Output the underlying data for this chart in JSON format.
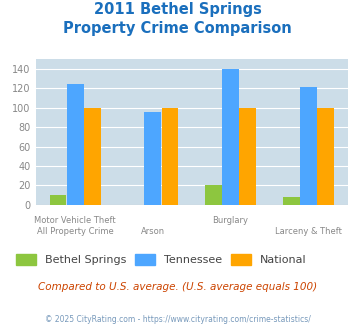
{
  "title_line1": "2011 Bethel Springs",
  "title_line2": "Property Crime Comparison",
  "bethel_springs": [
    10,
    0,
    20,
    8
  ],
  "tennessee": [
    125,
    96,
    140,
    121
  ],
  "national": [
    100,
    100,
    100,
    100
  ],
  "bethel_color": "#8dc63f",
  "tennessee_color": "#4da6ff",
  "national_color": "#ffa500",
  "bg_color": "#ccdde8",
  "ylim": [
    0,
    150
  ],
  "yticks": [
    0,
    20,
    40,
    60,
    80,
    100,
    120,
    140
  ],
  "legend_labels": [
    "Bethel Springs",
    "Tennessee",
    "National"
  ],
  "x_top_labels": [
    "Motor Vehicle Theft",
    "",
    "Burglary",
    ""
  ],
  "x_bottom_labels": [
    "All Property Crime",
    "Arson",
    "",
    "Larceny & Theft"
  ],
  "footnote1": "Compared to U.S. average. (U.S. average equals 100)",
  "footnote2": "© 2025 CityRating.com - https://www.cityrating.com/crime-statistics/"
}
